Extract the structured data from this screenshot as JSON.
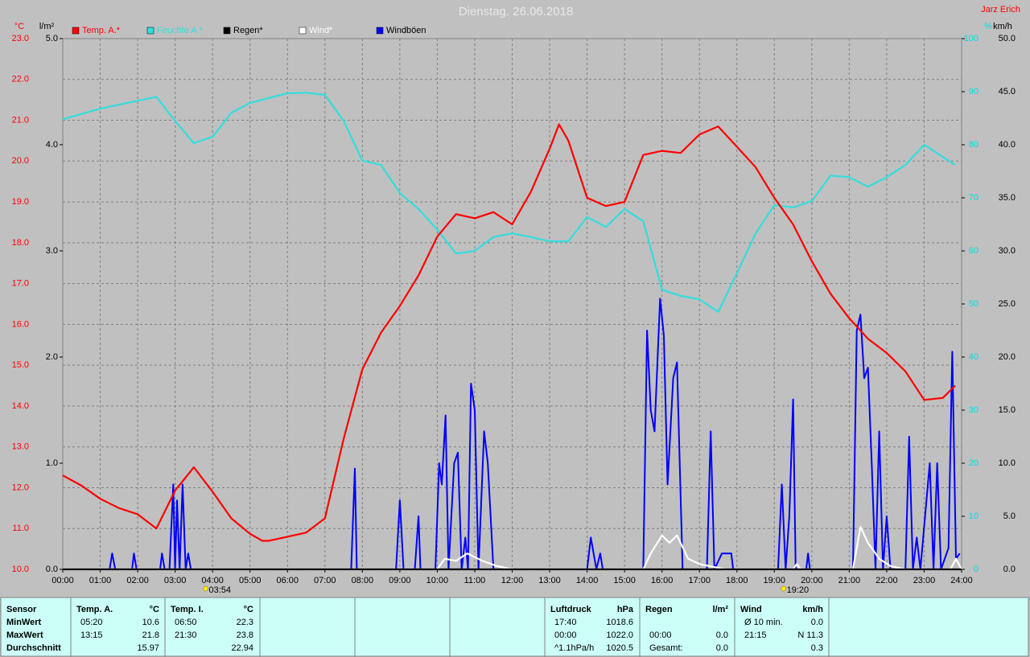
{
  "chart_data": {
    "type": "line",
    "title": "Dienstag. 26.06.2018",
    "author": "Jarz Erich",
    "xlim": [
      0,
      24
    ],
    "xticks": [
      {
        "value": 0,
        "label": "00:00"
      },
      {
        "value": 1,
        "label": "01:00"
      },
      {
        "value": 2,
        "label": "02:00"
      },
      {
        "value": 3,
        "label": "03:00"
      },
      {
        "value": 4,
        "label": "04:00"
      },
      {
        "value": 5,
        "label": "05:00"
      },
      {
        "value": 6,
        "label": "06:00"
      },
      {
        "value": 7,
        "label": "07:00"
      },
      {
        "value": 8,
        "label": "08:00"
      },
      {
        "value": 9,
        "label": "09:00"
      },
      {
        "value": 10,
        "label": "10:00"
      },
      {
        "value": 11,
        "label": "11:00"
      },
      {
        "value": 12,
        "label": "12:00"
      },
      {
        "value": 13,
        "label": "13:00"
      },
      {
        "value": 14,
        "label": "14:00"
      },
      {
        "value": 15,
        "label": "15:00"
      },
      {
        "value": 16,
        "label": "16:00"
      },
      {
        "value": 17,
        "label": "17:00"
      },
      {
        "value": 18,
        "label": "18:00"
      },
      {
        "value": 19,
        "label": "19:00"
      },
      {
        "value": 20,
        "label": "20:00"
      },
      {
        "value": 21,
        "label": "21:00"
      },
      {
        "value": 22,
        "label": "22:00"
      },
      {
        "value": 23,
        "label": "23:00"
      },
      {
        "value": 24,
        "label": "24:00"
      }
    ],
    "grid": true,
    "annotations": [
      {
        "value": 3.9,
        "label": "03:54"
      },
      {
        "value": 19.33,
        "label": "19:20"
      }
    ],
    "axes": {
      "y": {
        "label": "°C",
        "color": "#ff0000",
        "lim": [
          10,
          23
        ],
        "ticks": [
          {
            "value": 10,
            "label": "10.0"
          },
          {
            "value": 11,
            "label": "11.0"
          },
          {
            "value": 12,
            "label": "12.0"
          },
          {
            "value": 13,
            "label": "13.0"
          },
          {
            "value": 14,
            "label": "14.0"
          },
          {
            "value": 15,
            "label": "15.0"
          },
          {
            "value": 16,
            "label": "16.0"
          },
          {
            "value": 17,
            "label": "17.0"
          },
          {
            "value": 18,
            "label": "18.0"
          },
          {
            "value": 19,
            "label": "19.0"
          },
          {
            "value": 20,
            "label": "20.0"
          },
          {
            "value": 21,
            "label": "21.0"
          },
          {
            "value": 22,
            "label": "22.0"
          },
          {
            "value": 23,
            "label": "23.0"
          }
        ]
      },
      "y2": {
        "label": "l/m²",
        "color": "#000000",
        "lim": [
          0,
          5
        ],
        "ticks": [
          {
            "value": 0,
            "label": "0.0"
          },
          {
            "value": 1,
            "label": "1.0"
          },
          {
            "value": 2,
            "label": "2.0"
          },
          {
            "value": 3,
            "label": "3.0"
          },
          {
            "value": 4,
            "label": "4.0"
          },
          {
            "value": 5,
            "label": "5.0"
          }
        ]
      },
      "y3": {
        "label": "%",
        "color": "#00dddd",
        "lim": [
          0,
          100
        ],
        "ticks": [
          0,
          10,
          20,
          30,
          40,
          50,
          60,
          70,
          80,
          90,
          100
        ]
      },
      "y4": {
        "label": "km/h",
        "color": "#000000",
        "lim": [
          0,
          50
        ],
        "ticks": [
          {
            "value": 0,
            "label": "0.0"
          },
          {
            "value": 5,
            "label": "5.0"
          },
          {
            "value": 10,
            "label": "10.0"
          },
          {
            "value": 15,
            "label": "15.0"
          },
          {
            "value": 20,
            "label": "20.0"
          },
          {
            "value": 25,
            "label": "25.0"
          },
          {
            "value": 30,
            "label": "30.0"
          },
          {
            "value": 35,
            "label": "35.0"
          },
          {
            "value": 40,
            "label": "40.0"
          },
          {
            "value": 45,
            "label": "45.0"
          },
          {
            "value": 50,
            "label": "50.0"
          }
        ]
      }
    },
    "series": [
      {
        "name": "Temp. A.*",
        "color": "#ff0000",
        "axis": "y",
        "x": [
          0,
          0.5,
          1,
          1.5,
          2,
          2.5,
          3,
          3.5,
          4,
          4.5,
          5,
          5.33,
          5.5,
          6,
          6.5,
          7,
          7.5,
          8,
          8.5,
          9,
          9.5,
          10,
          10.5,
          11,
          11.5,
          12,
          12.5,
          13,
          13.25,
          13.5,
          14,
          14.5,
          15,
          15.5,
          16,
          16.5,
          17,
          17.5,
          18,
          18.5,
          19,
          19.5,
          20,
          20.5,
          21,
          21.5,
          22,
          22.5,
          23,
          23.5,
          23.83
        ],
        "values": [
          12.3,
          12.05,
          11.73,
          11.5,
          11.35,
          11.0,
          11.93,
          12.5,
          11.9,
          11.25,
          10.87,
          10.7,
          10.7,
          10.8,
          10.9,
          11.25,
          13.2,
          14.9,
          15.8,
          16.45,
          17.2,
          18.15,
          18.7,
          18.6,
          18.75,
          18.45,
          19.25,
          20.3,
          20.9,
          20.5,
          19.1,
          18.9,
          19.0,
          20.15,
          20.25,
          20.2,
          20.65,
          20.85,
          20.35,
          19.85,
          19.1,
          18.45,
          17.55,
          16.75,
          16.15,
          15.65,
          15.3,
          14.85,
          14.15,
          14.2,
          14.5
        ]
      },
      {
        "name": "Feuchte A.*",
        "color": "#33dddd",
        "axis": "y3",
        "x": [
          0,
          1,
          2,
          2.5,
          3,
          3.5,
          4,
          4.5,
          5,
          5.5,
          6,
          6.5,
          7,
          7.5,
          8,
          8.5,
          9,
          9.5,
          10,
          10.5,
          11,
          11.5,
          12,
          12.5,
          13,
          13.5,
          14,
          14.5,
          15,
          15.5,
          16,
          16.5,
          17,
          17.5,
          18,
          18.5,
          19,
          19.5,
          20,
          20.5,
          21,
          21.5,
          22,
          22.5,
          23,
          23.5,
          23.83
        ],
        "values": [
          84.8,
          86.8,
          88.3,
          89,
          84.5,
          80.3,
          81.5,
          86,
          87.9,
          88.8,
          89.7,
          89.8,
          89.4,
          84.5,
          77,
          76.2,
          70.9,
          67.9,
          64,
          59.5,
          60,
          62.6,
          63.3,
          62.6,
          61.8,
          61.8,
          66.4,
          64.5,
          67.9,
          65.6,
          52.7,
          51.5,
          50.9,
          48.5,
          55.8,
          63.3,
          68.6,
          68.2,
          69.4,
          74.2,
          73.9,
          72.1,
          73.9,
          76.2,
          80,
          77.7,
          76.2
        ]
      },
      {
        "name": "Regen*",
        "color": "#000000",
        "axis": "y2",
        "x": [
          0,
          24
        ],
        "values": [
          0,
          0
        ]
      },
      {
        "name": "Wind*",
        "color": "#ffffff",
        "axis": "y4",
        "x": [
          0,
          10,
          10.2,
          10.5,
          10.8,
          11.2,
          11.6,
          12,
          15.5,
          15.7,
          16,
          16.2,
          16.4,
          16.7,
          17,
          17.7,
          19.5,
          19.6,
          19.7,
          21.1,
          21.3,
          21.5,
          21.8,
          22.1,
          22.5,
          23.7,
          23.85,
          24
        ],
        "values": [
          0,
          0,
          1,
          0.8,
          1.5,
          0.8,
          0.3,
          0,
          0,
          1.5,
          3.2,
          2.5,
          3.2,
          1,
          0.5,
          0,
          0,
          0.5,
          0,
          0,
          4,
          2.5,
          1,
          0.3,
          0,
          0,
          1,
          0
        ]
      },
      {
        "name": "Windböen",
        "color": "#0000ff",
        "axis": "y4",
        "x": [
          0,
          1.25,
          1.32,
          1.4,
          1.85,
          1.9,
          1.97,
          2.6,
          2.65,
          2.72,
          2.85,
          2.95,
          3.0,
          3.05,
          3.12,
          3.2,
          3.28,
          3.35,
          3.42,
          7.7,
          7.8,
          7.85,
          8.9,
          9.0,
          9.1,
          9.4,
          9.5,
          9.55,
          9.95,
          10.05,
          10.12,
          10.22,
          10.3,
          10.45,
          10.55,
          10.65,
          10.75,
          10.82,
          10.9,
          11.0,
          11.1,
          11.25,
          11.35,
          11.5,
          14.0,
          14.1,
          14.25,
          14.35,
          14.42,
          15.5,
          15.6,
          15.7,
          15.8,
          15.95,
          16.05,
          16.15,
          16.3,
          16.4,
          16.55,
          17.2,
          17.3,
          17.4,
          17.6,
          17.85,
          17.9,
          19.1,
          19.2,
          19.3,
          19.4,
          19.5,
          19.57,
          19.85,
          19.9,
          19.95,
          21.1,
          21.2,
          21.3,
          21.4,
          21.5,
          21.6,
          21.7,
          21.8,
          21.9,
          22.0,
          22.1,
          22.5,
          22.6,
          22.7,
          22.8,
          22.9,
          23.15,
          23.25,
          23.35,
          23.45,
          23.65,
          23.75,
          23.85,
          23.95
        ],
        "values": [
          0,
          0,
          1.5,
          0,
          0,
          1.5,
          0,
          0,
          1.5,
          0,
          0,
          8,
          0,
          6.5,
          0,
          8,
          0,
          1.5,
          0,
          0,
          9.5,
          0,
          0,
          6.5,
          0,
          0,
          5,
          0,
          0,
          10,
          8,
          14.5,
          0,
          10,
          11,
          0,
          3,
          0,
          17.5,
          15,
          0,
          13,
          10,
          0,
          0,
          3,
          0,
          1.5,
          0,
          0,
          22.5,
          15,
          13,
          25.5,
          22,
          8,
          18,
          19.5,
          0,
          0,
          13,
          0,
          1.5,
          1.5,
          0,
          0,
          8,
          0,
          5,
          16,
          0,
          0,
          1.5,
          0,
          0,
          22.5,
          24,
          18,
          19,
          10,
          0,
          13,
          0,
          5,
          0,
          0,
          12.5,
          0,
          3,
          0,
          10,
          0,
          10,
          0,
          2,
          20.5,
          1,
          1.5
        ]
      }
    ]
  },
  "table": {
    "row_labels": [
      "Sensor",
      "MinWert",
      "MaxWert",
      "Durchschnitt"
    ],
    "panels": [
      {
        "title": "Temp. A.",
        "unit": "°C",
        "rows": [
          [
            "05:20",
            "10.6"
          ],
          [
            "13:15",
            "21.8"
          ],
          [
            null,
            "15.97"
          ]
        ]
      },
      {
        "title": "Temp. I.",
        "unit": "°C",
        "rows": [
          [
            "06:50",
            "22.3"
          ],
          [
            "21:30",
            "23.8"
          ],
          [
            null,
            "22.94"
          ]
        ]
      },
      {
        "title": "Luftdruck",
        "unit": "hPa",
        "rows": [
          [
            "17:40",
            "1018.6"
          ],
          [
            "00:00",
            "1022.0"
          ],
          [
            "^1.1hPa/h",
            "1020.5"
          ]
        ]
      },
      {
        "title": "Regen",
        "unit": "l/m²",
        "rows": [
          [
            null,
            null
          ],
          [
            "00:00",
            "0.0"
          ],
          [
            "Gesamt:",
            "0.0"
          ]
        ]
      },
      {
        "title": "Wind",
        "unit": "km/h",
        "rows": [
          [
            "Ø 10 min.",
            "0.0"
          ],
          [
            "21:15",
            "N 11.3"
          ],
          [
            null,
            "0.3"
          ]
        ]
      }
    ]
  }
}
